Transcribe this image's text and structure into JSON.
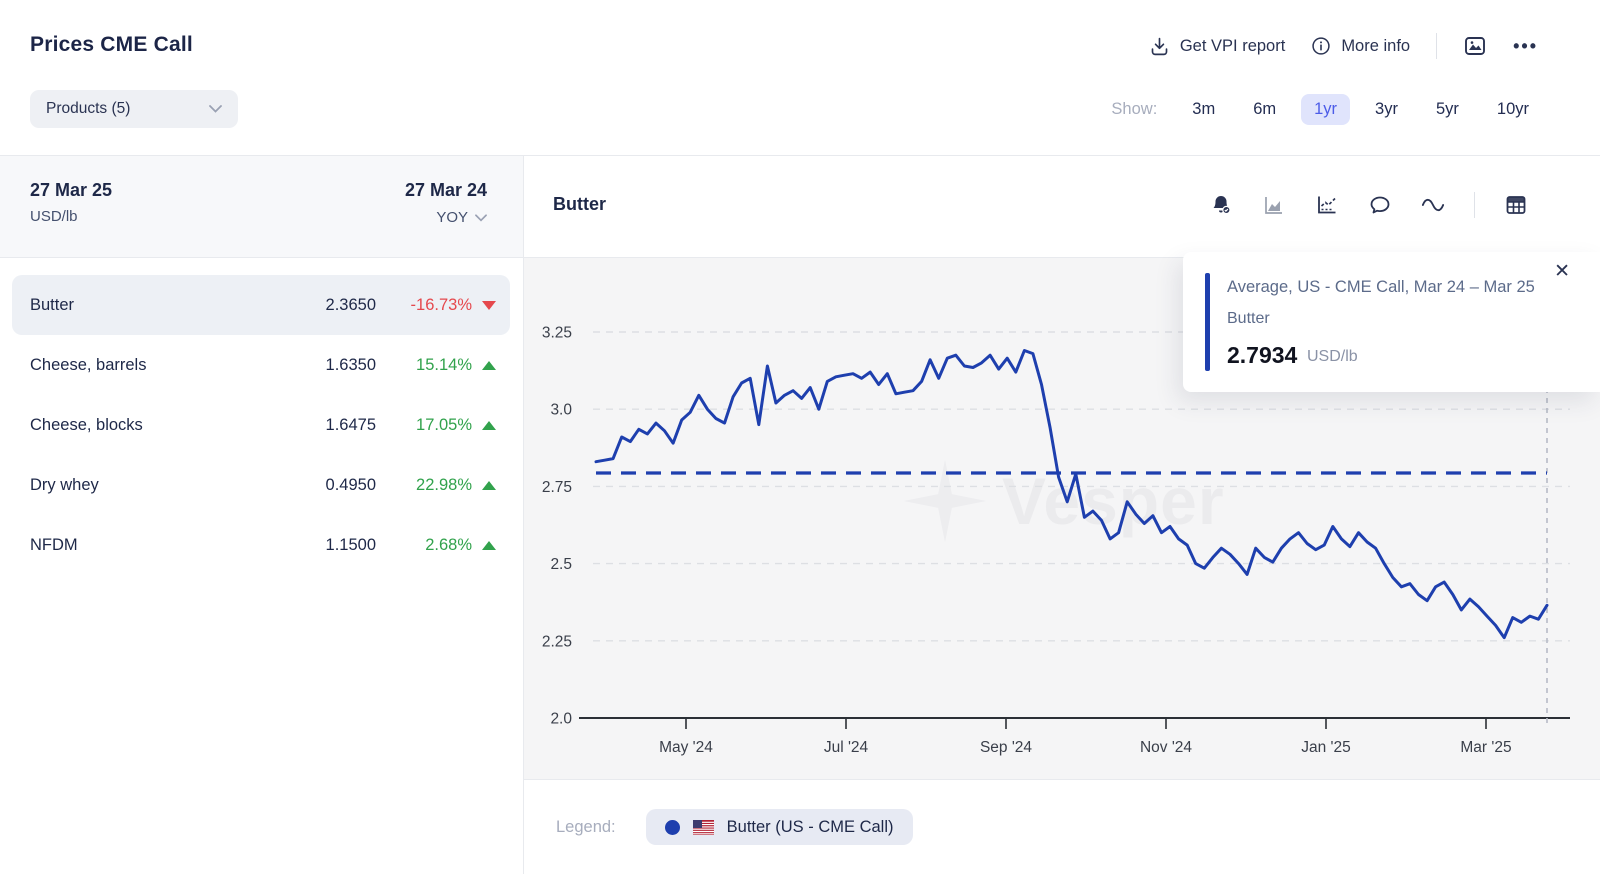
{
  "header": {
    "title": "Prices CME Call",
    "products_button": "Products (5)",
    "get_vpi_report": "Get VPI report",
    "more_info": "More info",
    "ellipsis": "•••",
    "show_label": "Show:",
    "ranges": [
      {
        "label": "3m",
        "active": false
      },
      {
        "label": "6m",
        "active": false
      },
      {
        "label": "1yr",
        "active": true
      },
      {
        "label": "3yr",
        "active": false
      },
      {
        "label": "5yr",
        "active": false
      },
      {
        "label": "10yr",
        "active": false
      }
    ]
  },
  "table": {
    "date_current": "27 Mar 25",
    "unit": "USD/lb",
    "date_prev": "27 Mar 24",
    "compare_mode": "YOY",
    "rows": [
      {
        "name": "Butter",
        "value": "2.3650",
        "change": "-16.73%",
        "direction": "down",
        "selected": true
      },
      {
        "name": "Cheese, barrels",
        "value": "1.6350",
        "change": "15.14%",
        "direction": "up",
        "selected": false
      },
      {
        "name": "Cheese, blocks",
        "value": "1.6475",
        "change": "17.05%",
        "direction": "up",
        "selected": false
      },
      {
        "name": "Dry whey",
        "value": "0.4950",
        "change": "22.98%",
        "direction": "up",
        "selected": false
      },
      {
        "name": "NFDM",
        "value": "1.1500",
        "change": "2.68%",
        "direction": "up",
        "selected": false
      }
    ]
  },
  "chart_panel": {
    "title": "Butter",
    "toolbar_icons": [
      "alert-bell-check-icon",
      "area-chart-icon",
      "line-chart-axis-icon",
      "comment-icon",
      "wave-icon",
      "table-icon"
    ]
  },
  "tooltip": {
    "line1": "Average, US - CME Call, Mar 24 – Mar 25",
    "line2": "Butter",
    "value": "2.7934",
    "unit": "USD/lb",
    "close": "✕"
  },
  "legend": {
    "label": "Legend:",
    "series": "Butter (US - CME Call)"
  },
  "watermark": "Vesper",
  "colors": {
    "line": "#1e3fae",
    "positive": "#31a24c",
    "negative": "#e5484d",
    "active_chip_bg": "#e0e4fc",
    "active_chip_text": "#4c5ce8"
  },
  "chart_data": {
    "type": "line",
    "title": "Butter",
    "unit": "USD/lb",
    "x_labels": [
      "May '24",
      "Jul '24",
      "Sep '24",
      "Nov '24",
      "Jan '25",
      "Mar '25"
    ],
    "x_range": [
      "27 Mar 24",
      "27 Mar 25"
    ],
    "y_tick_labels": [
      "3.25",
      "3.0",
      "2.75",
      "2.5",
      "2.25",
      "2.0"
    ],
    "ylim": [
      2.0,
      3.25
    ],
    "grid": true,
    "legend_position": "bottom",
    "average": {
      "label": "Average, US - CME Call, Mar 24 – Mar 25",
      "value": 2.7934
    },
    "last_value": 2.365,
    "series": [
      {
        "name": "Butter (US - CME Call)",
        "color": "#1e3fae",
        "values": [
          2.83,
          2.835,
          2.84,
          2.91,
          2.895,
          2.935,
          2.92,
          2.955,
          2.93,
          2.89,
          2.965,
          2.99,
          3.045,
          3.0,
          2.97,
          2.955,
          3.04,
          3.085,
          3.1,
          2.95,
          3.14,
          3.02,
          3.045,
          3.06,
          3.035,
          3.07,
          3.0,
          3.09,
          3.105,
          3.11,
          3.115,
          3.1,
          3.12,
          3.08,
          3.115,
          3.05,
          3.055,
          3.06,
          3.09,
          3.16,
          3.1,
          3.165,
          3.175,
          3.14,
          3.135,
          3.15,
          3.175,
          3.13,
          3.165,
          3.12,
          3.19,
          3.18,
          3.08,
          2.94,
          2.78,
          2.7,
          2.79,
          2.65,
          2.67,
          2.64,
          2.58,
          2.6,
          2.7,
          2.66,
          2.63,
          2.655,
          2.6,
          2.62,
          2.58,
          2.56,
          2.5,
          2.485,
          2.52,
          2.55,
          2.53,
          2.5,
          2.465,
          2.55,
          2.52,
          2.505,
          2.55,
          2.58,
          2.6,
          2.565,
          2.545,
          2.56,
          2.62,
          2.58,
          2.555,
          2.6,
          2.57,
          2.55,
          2.5,
          2.455,
          2.425,
          2.435,
          2.4,
          2.38,
          2.425,
          2.44,
          2.4,
          2.35,
          2.385,
          2.36,
          2.33,
          2.3,
          2.26,
          2.325,
          2.31,
          2.33,
          2.32,
          2.365
        ]
      }
    ]
  }
}
